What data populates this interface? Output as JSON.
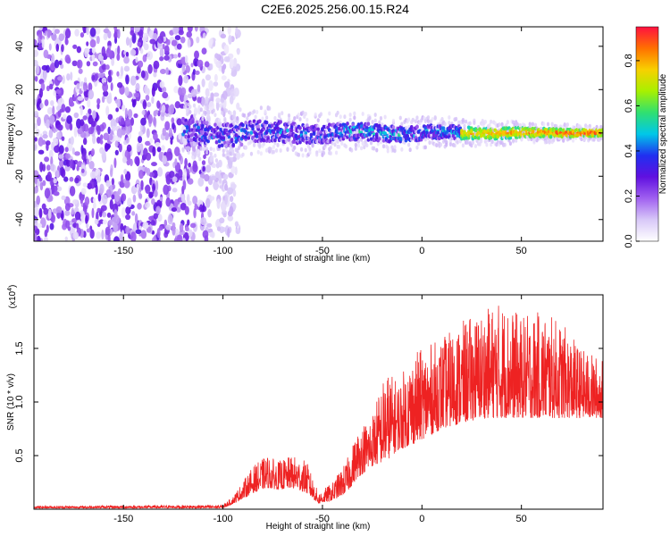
{
  "title": "C2E6.2025.256.00.15.R24",
  "colors": {
    "snr_line": "#ee2222",
    "colorbar": [
      "#ffffff",
      "#d8c8f8",
      "#a060f0",
      "#6010e0",
      "#2030f0",
      "#00c8e8",
      "#30e070",
      "#a8f000",
      "#f8d000",
      "#ff7000",
      "#ff1040"
    ]
  },
  "chart_data": [
    {
      "type": "heatmap",
      "name": "spectrogram",
      "xlabel": "Height of straight line (km)",
      "ylabel": "Frequency (Hz)",
      "xlim": [
        -195,
        91
      ],
      "ylim": [
        -50,
        49
      ],
      "xticks": [
        -150,
        -100,
        -50,
        0,
        50
      ],
      "xtick_labels": [
        "-150",
        "-100",
        "-50",
        "0",
        "50"
      ],
      "yticks": [
        -40,
        -20,
        0,
        20,
        40
      ],
      "ytick_labels": [
        "-40",
        "-20",
        "0",
        "20",
        "40"
      ],
      "noise_region_km": [
        -195,
        -100
      ],
      "signal_band": {
        "start_km": -120,
        "center_hz": 0,
        "half_width_hz_start": 8,
        "half_width_hz_end": 2
      },
      "description_regions": [
        {
          "x_range_km": [
            -195,
            -100
          ],
          "amplitude": "low, scattered noise"
        },
        {
          "x_range_km": [
            -115,
            -40
          ],
          "amplitude": "0.2-0.6"
        },
        {
          "x_range_km": [
            -40,
            20
          ],
          "amplitude": "0.3-0.6"
        },
        {
          "x_range_km": [
            20,
            91
          ],
          "amplitude": "0.7-1.0"
        }
      ],
      "colorbar": {
        "label": "Normalized spectral amplitude",
        "range": [
          0.0,
          0.95
        ],
        "ticks": [
          0.0,
          0.2,
          0.4,
          0.6,
          0.8
        ],
        "tick_labels": [
          "0.0",
          "0.2",
          "0.4",
          "0.6",
          "0.8"
        ]
      }
    },
    {
      "type": "line",
      "name": "snr",
      "xlabel": "Height of straight line (km)",
      "ylabel": "SNR (10 * v/v)",
      "scale_label": "(x10",
      "scale_exponent": "4",
      "scale_suffix": ")",
      "xlim": [
        -195,
        91
      ],
      "ylim": [
        0,
        2.0
      ],
      "xticks": [
        -150,
        -100,
        -50,
        0,
        50
      ],
      "xtick_labels": [
        "-150",
        "-100",
        "-50",
        "0",
        "50"
      ],
      "yticks": [
        0.5,
        1.0,
        1.5
      ],
      "ytick_labels": [
        "0.5",
        "1.0",
        "1.5"
      ],
      "envelope": {
        "x": [
          -195,
          -100,
          -95,
          -85,
          -78,
          -72,
          -65,
          -58,
          -52,
          -45,
          -38,
          -32,
          -25,
          -18,
          -12,
          -5,
          0,
          5,
          10,
          20,
          30,
          40,
          50,
          60,
          70,
          80,
          91
        ],
        "baseline": [
          0.01,
          0.01,
          0.05,
          0.15,
          0.2,
          0.18,
          0.2,
          0.15,
          0.05,
          0.08,
          0.15,
          0.3,
          0.4,
          0.45,
          0.55,
          0.6,
          0.65,
          0.7,
          0.75,
          0.8,
          0.85,
          0.85,
          0.85,
          0.85,
          0.85,
          0.85,
          0.85
        ],
        "peak": [
          0.03,
          0.04,
          0.12,
          0.4,
          0.5,
          0.45,
          0.5,
          0.45,
          0.15,
          0.25,
          0.45,
          0.75,
          0.9,
          1.3,
          1.2,
          1.45,
          1.5,
          1.55,
          1.6,
          1.75,
          1.85,
          1.95,
          1.8,
          1.85,
          1.75,
          1.5,
          1.4
        ]
      }
    }
  ]
}
